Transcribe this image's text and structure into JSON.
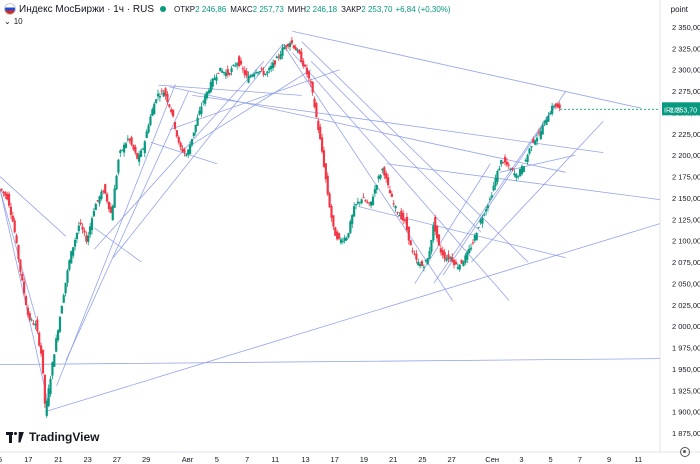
{
  "header": {
    "title": "Индекс МосБиржи · 1ч · RUS",
    "open_label": "ОТКР",
    "open": "2 246,86",
    "high_label": "МАКС",
    "high": "2 257,73",
    "low_label": "МИН",
    "low": "2 246,18",
    "close_label": "ЗАКР",
    "close": "2 253,70",
    "change": "+6,84 (+0,30%)",
    "volume_count": "10",
    "scale_unit": "point"
  },
  "price_label": {
    "symbol": "IRUS",
    "value": "2 253,70"
  },
  "logo_text": "TradingView",
  "colors": {
    "up": "#089981",
    "down": "#f23645",
    "trendline": "#8a9ae8",
    "accent": "#2962ff"
  },
  "icons": {
    "flag": "russia-flag-icon",
    "settings": "gear-icon",
    "chevron": "chevron-down-icon"
  },
  "chart_data": {
    "type": "candlestick",
    "ylim": [
      1865,
      2372
    ],
    "y_ticks": [
      "1 875,00",
      "1 900,00",
      "1 925,00",
      "1 950,00",
      "1 975,00",
      "2 000,00",
      "2 025,00",
      "2 050,00",
      "2 075,00",
      "2 100,00",
      "2 125,00",
      "2 150,00",
      "2 175,00",
      "2 200,00",
      "2 225,00",
      "2 250,00",
      "2 275,00",
      "2 300,00",
      "2 325,00",
      "2 350,00"
    ],
    "y_tick_values": [
      1875,
      1900,
      1925,
      1950,
      1975,
      2000,
      2025,
      2050,
      2075,
      2100,
      2125,
      2150,
      2175,
      2200,
      2225,
      2250,
      2275,
      2300,
      2325,
      2350
    ],
    "x_ticks": [
      "5",
      "17",
      "21",
      "23",
      "27",
      "29",
      "Авг",
      "5",
      "7",
      "11",
      "13",
      "17",
      "19",
      "21",
      "25",
      "27",
      "Сен",
      "3",
      "5",
      "7",
      "9",
      "11"
    ],
    "x_tick_bars": [
      0,
      30,
      62,
      93,
      124,
      155,
      199,
      230,
      262,
      292,
      324,
      355,
      386,
      417,
      448,
      479,
      522,
      553,
      584,
      615,
      646,
      677
    ],
    "last_value": 2253.7,
    "key_points": [
      [
        0,
        2160
      ],
      [
        8,
        2150
      ],
      [
        14,
        2120
      ],
      [
        22,
        2060
      ],
      [
        30,
        2010
      ],
      [
        38,
        2000
      ],
      [
        44,
        1965
      ],
      [
        48,
        1900
      ],
      [
        56,
        1960
      ],
      [
        66,
        2030
      ],
      [
        74,
        2080
      ],
      [
        84,
        2120
      ],
      [
        92,
        2100
      ],
      [
        100,
        2140
      ],
      [
        110,
        2160
      ],
      [
        118,
        2130
      ],
      [
        126,
        2200
      ],
      [
        136,
        2220
      ],
      [
        146,
        2195
      ],
      [
        152,
        2210
      ],
      [
        158,
        2240
      ],
      [
        166,
        2270
      ],
      [
        174,
        2275
      ],
      [
        182,
        2250
      ],
      [
        190,
        2210
      ],
      [
        198,
        2200
      ],
      [
        206,
        2230
      ],
      [
        214,
        2260
      ],
      [
        222,
        2280
      ],
      [
        232,
        2300
      ],
      [
        242,
        2295
      ],
      [
        252,
        2310
      ],
      [
        262,
        2290
      ],
      [
        272,
        2300
      ],
      [
        282,
        2295
      ],
      [
        292,
        2310
      ],
      [
        300,
        2325
      ],
      [
        308,
        2333
      ],
      [
        316,
        2320
      ],
      [
        324,
        2300
      ],
      [
        330,
        2280
      ],
      [
        336,
        2240
      ],
      [
        342,
        2200
      ],
      [
        348,
        2150
      ],
      [
        354,
        2110
      ],
      [
        360,
        2100
      ],
      [
        368,
        2105
      ],
      [
        376,
        2140
      ],
      [
        384,
        2150
      ],
      [
        392,
        2140
      ],
      [
        400,
        2170
      ],
      [
        406,
        2185
      ],
      [
        412,
        2160
      ],
      [
        418,
        2140
      ],
      [
        424,
        2130
      ],
      [
        430,
        2120
      ],
      [
        436,
        2090
      ],
      [
        442,
        2075
      ],
      [
        448,
        2070
      ],
      [
        454,
        2080
      ],
      [
        460,
        2120
      ],
      [
        466,
        2090
      ],
      [
        472,
        2080
      ],
      [
        478,
        2080
      ],
      [
        484,
        2070
      ],
      [
        490,
        2075
      ],
      [
        496,
        2085
      ],
      [
        502,
        2100
      ],
      [
        508,
        2120
      ],
      [
        514,
        2135
      ],
      [
        520,
        2150
      ],
      [
        526,
        2175
      ],
      [
        532,
        2195
      ],
      [
        540,
        2185
      ],
      [
        548,
        2175
      ],
      [
        556,
        2190
      ],
      [
        564,
        2215
      ],
      [
        572,
        2225
      ],
      [
        580,
        2245
      ],
      [
        588,
        2260
      ],
      [
        594,
        2253
      ]
    ]
  }
}
